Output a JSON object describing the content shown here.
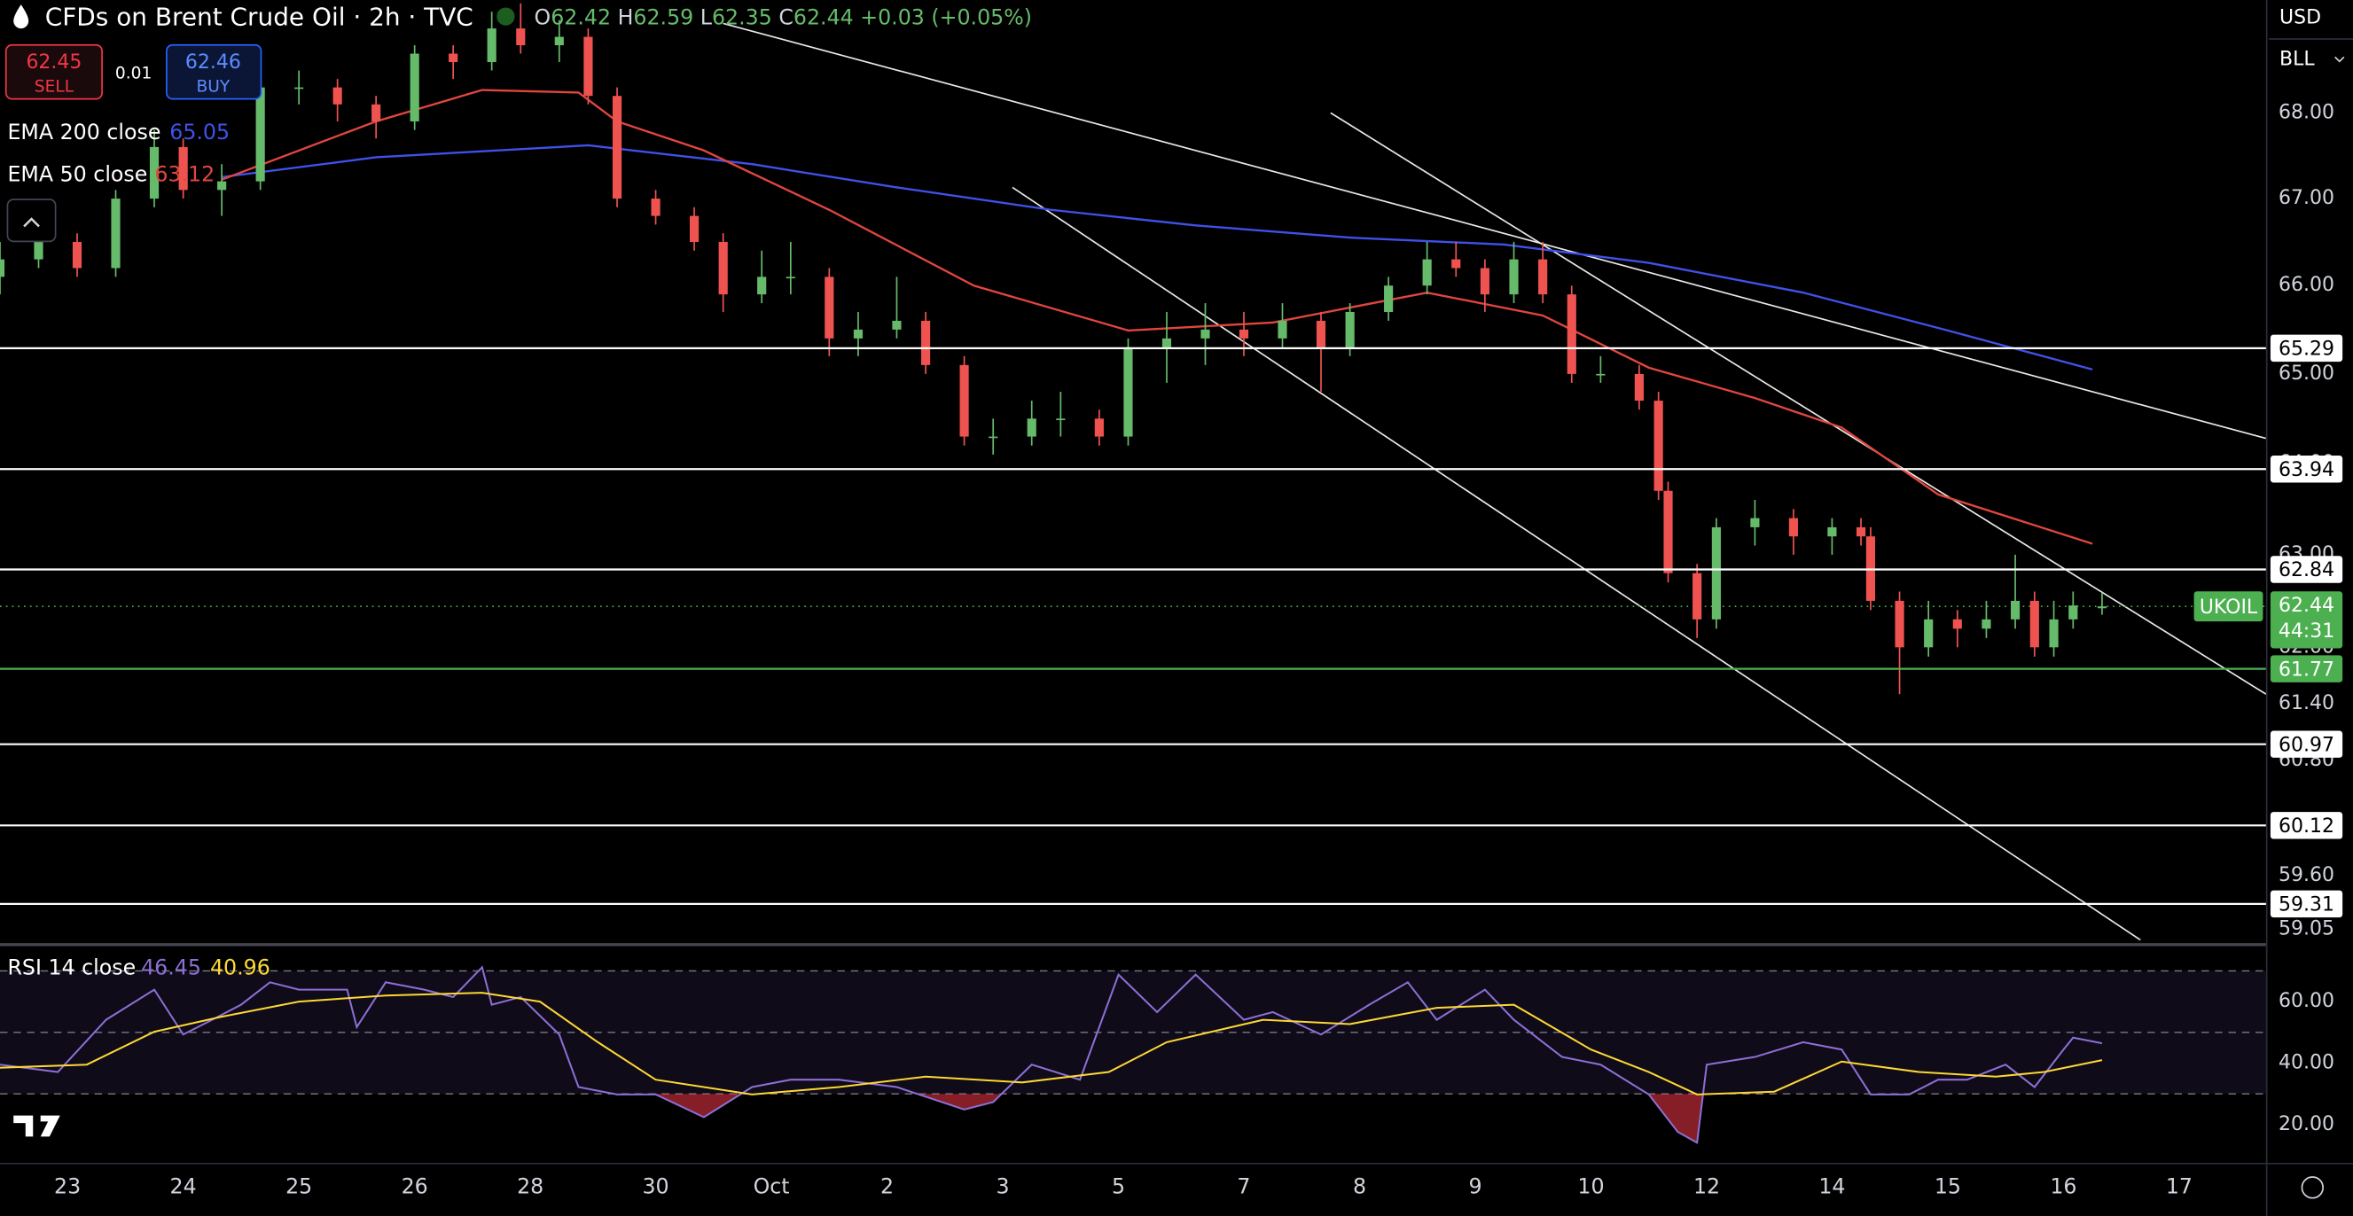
{
  "header": {
    "title": "CFDs on Brent Crude Oil · 2h · TVC",
    "ohlc": [
      {
        "key": "O",
        "value": "62.42"
      },
      {
        "key": "H",
        "value": "62.59"
      },
      {
        "key": "L",
        "value": "62.35"
      },
      {
        "key": "C",
        "value": "62.44"
      }
    ],
    "change": "+0.03 (+0.05%)"
  },
  "trade": {
    "sell_price": "62.45",
    "sell_label": "SELL",
    "spread": "0.01",
    "buy_price": "62.46",
    "buy_label": "BUY"
  },
  "toolbar": {
    "currency": "USD",
    "unit": "BLL"
  },
  "chart_data": {
    "type": "candlestick",
    "log_scale": true,
    "grid": false,
    "up_color": "#66bb6a",
    "down_color": "#ef5350",
    "xlim": [
      0,
      235
    ],
    "xticks": [
      {
        "value": 7,
        "label": "23"
      },
      {
        "value": 19,
        "label": "24"
      },
      {
        "value": 31,
        "label": "25"
      },
      {
        "value": 43,
        "label": "26"
      },
      {
        "value": 55,
        "label": "28"
      },
      {
        "value": 68,
        "label": "30"
      },
      {
        "value": 80,
        "label": "Oct"
      },
      {
        "value": 92,
        "label": "2"
      },
      {
        "value": 104,
        "label": "3"
      },
      {
        "value": 116,
        "label": "5"
      },
      {
        "value": 129,
        "label": "7"
      },
      {
        "value": 141,
        "label": "8"
      },
      {
        "value": 153,
        "label": "9"
      },
      {
        "value": 165,
        "label": "10"
      },
      {
        "value": 177,
        "label": "12"
      },
      {
        "value": 190,
        "label": "14"
      },
      {
        "value": 202,
        "label": "15"
      },
      {
        "value": 214,
        "label": "16"
      },
      {
        "value": 226,
        "label": "17"
      }
    ],
    "ylim": [
      58.94,
      69.34
    ],
    "yticks": [
      {
        "value": 68,
        "label": "68.00"
      },
      {
        "value": 67,
        "label": "67.00"
      },
      {
        "value": 66,
        "label": "66.00"
      },
      {
        "value": 65,
        "label": "65.00"
      },
      {
        "value": 64,
        "label": "64.00"
      },
      {
        "value": 63,
        "label": "63.00"
      },
      {
        "value": 62,
        "label": "62.00"
      },
      {
        "value": 61.4,
        "label": "61.40"
      },
      {
        "value": 60.8,
        "label": "60.80"
      },
      {
        "value": 59.6,
        "label": "59.60"
      },
      59.05
    ],
    "candles": [
      {
        "x": 0,
        "open": 66.1,
        "high": 66.5,
        "low": 65.9,
        "close": 66.3
      },
      {
        "x": 4,
        "open": 66.3,
        "high": 66.7,
        "low": 66.2,
        "close": 66.5
      },
      {
        "x": 8,
        "open": 66.5,
        "high": 66.6,
        "low": 66.1,
        "close": 66.2
      },
      {
        "x": 12,
        "open": 66.2,
        "high": 67.1,
        "low": 66.1,
        "close": 67.0
      },
      {
        "x": 16,
        "open": 67.0,
        "high": 67.8,
        "low": 66.9,
        "close": 67.6
      },
      {
        "x": 19,
        "open": 67.6,
        "high": 67.7,
        "low": 67.0,
        "close": 67.1
      },
      {
        "x": 23,
        "open": 67.1,
        "high": 67.4,
        "low": 66.8,
        "close": 67.2
      },
      {
        "x": 27,
        "open": 67.2,
        "high": 68.4,
        "low": 67.1,
        "close": 68.3
      },
      {
        "x": 31,
        "open": 68.3,
        "high": 68.5,
        "low": 68.1,
        "close": 68.3
      },
      {
        "x": 35,
        "open": 68.3,
        "high": 68.4,
        "low": 67.9,
        "close": 68.1
      },
      {
        "x": 39,
        "open": 68.1,
        "high": 68.2,
        "low": 67.7,
        "close": 67.9
      },
      {
        "x": 43,
        "open": 67.9,
        "high": 68.8,
        "low": 67.8,
        "close": 68.7
      },
      {
        "x": 47,
        "open": 68.7,
        "high": 68.8,
        "low": 68.4,
        "close": 68.6
      },
      {
        "x": 51,
        "open": 68.6,
        "high": 69.2,
        "low": 68.5,
        "close": 69.0
      },
      {
        "x": 54,
        "open": 69.0,
        "high": 69.3,
        "low": 68.7,
        "close": 68.8
      },
      {
        "x": 58,
        "open": 68.8,
        "high": 69.1,
        "low": 68.6,
        "close": 68.9
      },
      {
        "x": 61,
        "open": 68.9,
        "high": 69.0,
        "low": 68.1,
        "close": 68.2
      },
      {
        "x": 64,
        "open": 68.2,
        "high": 68.3,
        "low": 66.9,
        "close": 67.0
      },
      {
        "x": 68,
        "open": 67.0,
        "high": 67.1,
        "low": 66.7,
        "close": 66.8
      },
      {
        "x": 72,
        "open": 66.8,
        "high": 66.9,
        "low": 66.4,
        "close": 66.5
      },
      {
        "x": 75,
        "open": 66.5,
        "high": 66.6,
        "low": 65.7,
        "close": 65.9
      },
      {
        "x": 79,
        "open": 65.9,
        "high": 66.4,
        "low": 65.8,
        "close": 66.1
      },
      {
        "x": 82,
        "open": 66.1,
        "high": 66.5,
        "low": 65.9,
        "close": 66.1
      },
      {
        "x": 86,
        "open": 66.1,
        "high": 66.2,
        "low": 65.2,
        "close": 65.4
      },
      {
        "x": 89,
        "open": 65.4,
        "high": 65.7,
        "low": 65.2,
        "close": 65.5
      },
      {
        "x": 93,
        "open": 65.5,
        "high": 66.1,
        "low": 65.4,
        "close": 65.6
      },
      {
        "x": 96,
        "open": 65.6,
        "high": 65.7,
        "low": 65.0,
        "close": 65.1
      },
      {
        "x": 100,
        "open": 65.1,
        "high": 65.2,
        "low": 64.2,
        "close": 64.3
      },
      {
        "x": 103,
        "open": 64.3,
        "high": 64.5,
        "low": 64.1,
        "close": 64.3
      },
      {
        "x": 107,
        "open": 64.3,
        "high": 64.7,
        "low": 64.2,
        "close": 64.5
      },
      {
        "x": 110,
        "open": 64.5,
        "high": 64.8,
        "low": 64.3,
        "close": 64.5
      },
      {
        "x": 114,
        "open": 64.5,
        "high": 64.6,
        "low": 64.2,
        "close": 64.3
      },
      {
        "x": 117,
        "open": 64.3,
        "high": 65.4,
        "low": 64.2,
        "close": 65.3
      },
      {
        "x": 121,
        "open": 65.3,
        "high": 65.7,
        "low": 64.9,
        "close": 65.4
      },
      {
        "x": 125,
        "open": 65.4,
        "high": 65.8,
        "low": 65.1,
        "close": 65.5
      },
      {
        "x": 129,
        "open": 65.5,
        "high": 65.7,
        "low": 65.2,
        "close": 65.4
      },
      {
        "x": 133,
        "open": 65.4,
        "high": 65.8,
        "low": 65.3,
        "close": 65.6
      },
      {
        "x": 137,
        "open": 65.6,
        "high": 65.7,
        "low": 64.8,
        "close": 65.3
      },
      {
        "x": 140,
        "open": 65.3,
        "high": 65.8,
        "low": 65.2,
        "close": 65.7
      },
      {
        "x": 144,
        "open": 65.7,
        "high": 66.1,
        "low": 65.6,
        "close": 66.0
      },
      {
        "x": 148,
        "open": 66.0,
        "high": 66.5,
        "low": 65.9,
        "close": 66.3
      },
      {
        "x": 151,
        "open": 66.3,
        "high": 66.5,
        "low": 66.1,
        "close": 66.2
      },
      {
        "x": 154,
        "open": 66.2,
        "high": 66.3,
        "low": 65.7,
        "close": 65.9
      },
      {
        "x": 157,
        "open": 65.9,
        "high": 66.5,
        "low": 65.8,
        "close": 66.3
      },
      {
        "x": 160,
        "open": 66.3,
        "high": 66.5,
        "low": 65.8,
        "close": 65.9
      },
      {
        "x": 163,
        "open": 65.9,
        "high": 66.0,
        "low": 64.9,
        "close": 65.0
      },
      {
        "x": 166,
        "open": 65.0,
        "high": 65.2,
        "low": 64.9,
        "close": 65.0
      },
      {
        "x": 170,
        "open": 65.0,
        "high": 65.1,
        "low": 64.6,
        "close": 64.7
      },
      {
        "x": 172,
        "open": 64.7,
        "high": 64.8,
        "low": 63.6,
        "close": 63.7
      },
      {
        "x": 173,
        "open": 63.7,
        "high": 63.8,
        "low": 62.7,
        "close": 62.8
      },
      {
        "x": 176,
        "open": 62.8,
        "high": 62.9,
        "low": 62.1,
        "close": 62.3
      },
      {
        "x": 178,
        "open": 62.3,
        "high": 63.4,
        "low": 62.2,
        "close": 63.3
      },
      {
        "x": 182,
        "open": 63.3,
        "high": 63.6,
        "low": 63.1,
        "close": 63.4
      },
      {
        "x": 186,
        "open": 63.4,
        "high": 63.5,
        "low": 63.0,
        "close": 63.2
      },
      {
        "x": 190,
        "open": 63.2,
        "high": 63.4,
        "low": 63.0,
        "close": 63.3
      },
      {
        "x": 193,
        "open": 63.3,
        "high": 63.4,
        "low": 63.1,
        "close": 63.2
      },
      {
        "x": 194,
        "open": 63.2,
        "high": 63.3,
        "low": 62.4,
        "close": 62.5
      },
      {
        "x": 197,
        "open": 62.5,
        "high": 62.6,
        "low": 61.5,
        "close": 62.0
      },
      {
        "x": 200,
        "open": 62.0,
        "high": 62.5,
        "low": 61.9,
        "close": 62.3
      },
      {
        "x": 203,
        "open": 62.3,
        "high": 62.4,
        "low": 62.0,
        "close": 62.2
      },
      {
        "x": 206,
        "open": 62.2,
        "high": 62.5,
        "low": 62.1,
        "close": 62.3
      },
      {
        "x": 209,
        "open": 62.3,
        "high": 63.0,
        "low": 62.2,
        "close": 62.5
      },
      {
        "x": 211,
        "open": 62.5,
        "high": 62.6,
        "low": 61.9,
        "close": 62.0
      },
      {
        "x": 213,
        "open": 62.0,
        "high": 62.5,
        "low": 61.9,
        "close": 62.3
      },
      {
        "x": 215,
        "open": 62.3,
        "high": 62.6,
        "low": 62.2,
        "close": 62.45
      },
      {
        "x": 218,
        "open": 62.42,
        "high": 62.59,
        "low": 62.35,
        "close": 62.44
      }
    ],
    "overlays": [
      {
        "name": "EMA 200 close",
        "color": "#3f51e8",
        "x": [
          23,
          39,
          61,
          78,
          93,
          109,
          124,
          140,
          156,
          171,
          187,
          202,
          217
        ],
        "values": [
          67.25,
          67.48,
          67.62,
          67.4,
          67.13,
          66.87,
          66.69,
          66.55,
          66.47,
          66.26,
          65.92,
          65.49,
          65.05
        ]
      },
      {
        "name": "EMA 50 close",
        "color": "#e0463e",
        "x": [
          23,
          39,
          50,
          60,
          64,
          73,
          86,
          101,
          117,
          132,
          148,
          160,
          171,
          182,
          191,
          201,
          217
        ],
        "values": [
          67.22,
          67.9,
          68.27,
          68.24,
          67.9,
          67.56,
          66.87,
          66.0,
          65.49,
          65.58,
          65.92,
          65.66,
          65.07,
          64.73,
          64.4,
          63.66,
          63.12
        ]
      }
    ],
    "trendlines": [
      {
        "x": [
          75,
          235
        ],
        "values": [
          69.06,
          64.28
        ]
      },
      {
        "x": [
          138,
          235
        ],
        "values": [
          68.0,
          61.5
        ]
      },
      {
        "x": [
          105,
          222
        ],
        "values": [
          67.13,
          58.94
        ]
      }
    ],
    "levels": [
      {
        "value": 65.29,
        "color": "#ffffff"
      },
      {
        "value": 63.94,
        "color": "#ffffff"
      },
      {
        "value": 62.84,
        "color": "#ffffff"
      },
      {
        "value": 61.77,
        "color": "#4caf50"
      },
      {
        "value": 60.97,
        "color": "#ffffff"
      },
      {
        "value": 60.12,
        "color": "#ffffff"
      },
      {
        "value": 59.31,
        "color": "#ffffff"
      }
    ],
    "last_price": {
      "symbol": "UKOIL",
      "value": 62.44,
      "countdown": "44:31",
      "color": "#4caf50"
    },
    "rsi": {
      "title": "RSI 14 close",
      "ylim": [
        7.8,
        77.1
      ],
      "yticks": [
        {
          "value": 60,
          "label": "60.00"
        },
        {
          "value": 40,
          "label": "40.00"
        },
        {
          "value": 20,
          "label": "20.00"
        }
      ],
      "bands": [
        70,
        50,
        30
      ],
      "band_color": "#7e57c2",
      "oversold_color": "#f23645",
      "series": [
        {
          "name": "RSI",
          "color": "#8c6fd6",
          "x": [
            0,
            6,
            11,
            16,
            19,
            22,
            25,
            28,
            31,
            36,
            37,
            40,
            44,
            47,
            50,
            51,
            54,
            58,
            60,
            64,
            68,
            73,
            78,
            82,
            87,
            93,
            100,
            103,
            107,
            112,
            116,
            120,
            124,
            129,
            132,
            137,
            142,
            146,
            149,
            154,
            157,
            162,
            166,
            171,
            174,
            176,
            177,
            182,
            187,
            191,
            194,
            198,
            201,
            204,
            208,
            211,
            214,
            215,
            218
          ],
          "values": [
            39.5,
            37.1,
            54.1,
            63.9,
            49.3,
            54.1,
            59.0,
            66.3,
            63.9,
            63.9,
            51.7,
            66.3,
            63.9,
            61.5,
            71.2,
            59.0,
            61.5,
            49.3,
            32.2,
            29.8,
            29.8,
            22.4,
            32.2,
            34.6,
            34.6,
            32.2,
            24.9,
            27.3,
            39.5,
            34.6,
            68.8,
            56.6,
            68.8,
            54.1,
            56.6,
            49.3,
            59.0,
            66.3,
            54.1,
            63.9,
            54.1,
            42.0,
            39.5,
            29.8,
            17.6,
            14.1,
            39.5,
            42.0,
            46.8,
            44.4,
            29.8,
            29.8,
            34.6,
            34.6,
            39.5,
            32.2,
            44.4,
            48.3,
            46.45
          ]
        },
        {
          "name": "RSI MA",
          "color": "#fdd835",
          "x": [
            0,
            9,
            16,
            23,
            31,
            40,
            50,
            56,
            62,
            68,
            78,
            87,
            96,
            106,
            115,
            121,
            131,
            140,
            149,
            157,
            165,
            171,
            176,
            184,
            191,
            199,
            207,
            212,
            218
          ],
          "values": [
            38.5,
            39.5,
            50.2,
            55.1,
            60.0,
            62.0,
            62.9,
            60.0,
            46.8,
            34.6,
            29.8,
            32.2,
            35.6,
            33.7,
            37.1,
            46.8,
            54.1,
            52.7,
            58.0,
            59.0,
            44.4,
            37.1,
            29.8,
            30.7,
            40.5,
            37.1,
            35.6,
            37.1,
            40.96
          ]
        }
      ]
    }
  }
}
